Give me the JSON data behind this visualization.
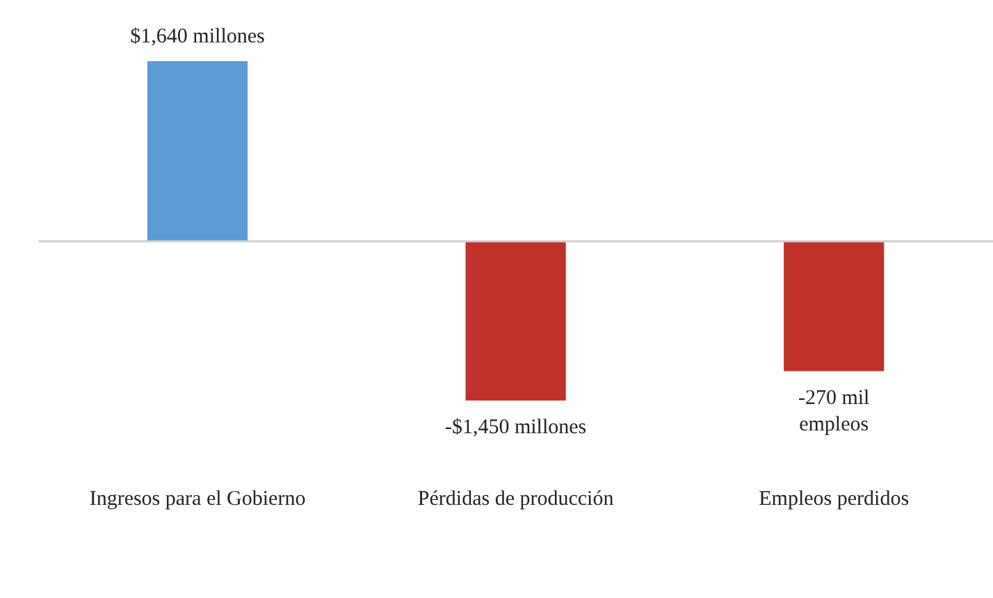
{
  "chart_data": {
    "type": "bar",
    "categories": [
      "Ingresos para el Gobierno",
      "Pérdidas de producción",
      "Empleos perdidos"
    ],
    "series": [
      {
        "values": [
          1640,
          -1450,
          null
        ],
        "colors": [
          "#5b9bd5",
          "#c0312b",
          "#c0312b"
        ],
        "value_labels": [
          "$1,640 millones",
          "-$1,450 millones",
          null
        ]
      },
      {
        "values": [
          null,
          null,
          -270
        ],
        "axis": "y2",
        "color": "#c0312b",
        "value_labels": [
          null,
          null,
          "-270 mil\nempleos"
        ]
      }
    ],
    "ylim": [
      -1450,
      1640
    ],
    "y2lim": [
      -331,
      374
    ],
    "tick_labels": "x"
  }
}
